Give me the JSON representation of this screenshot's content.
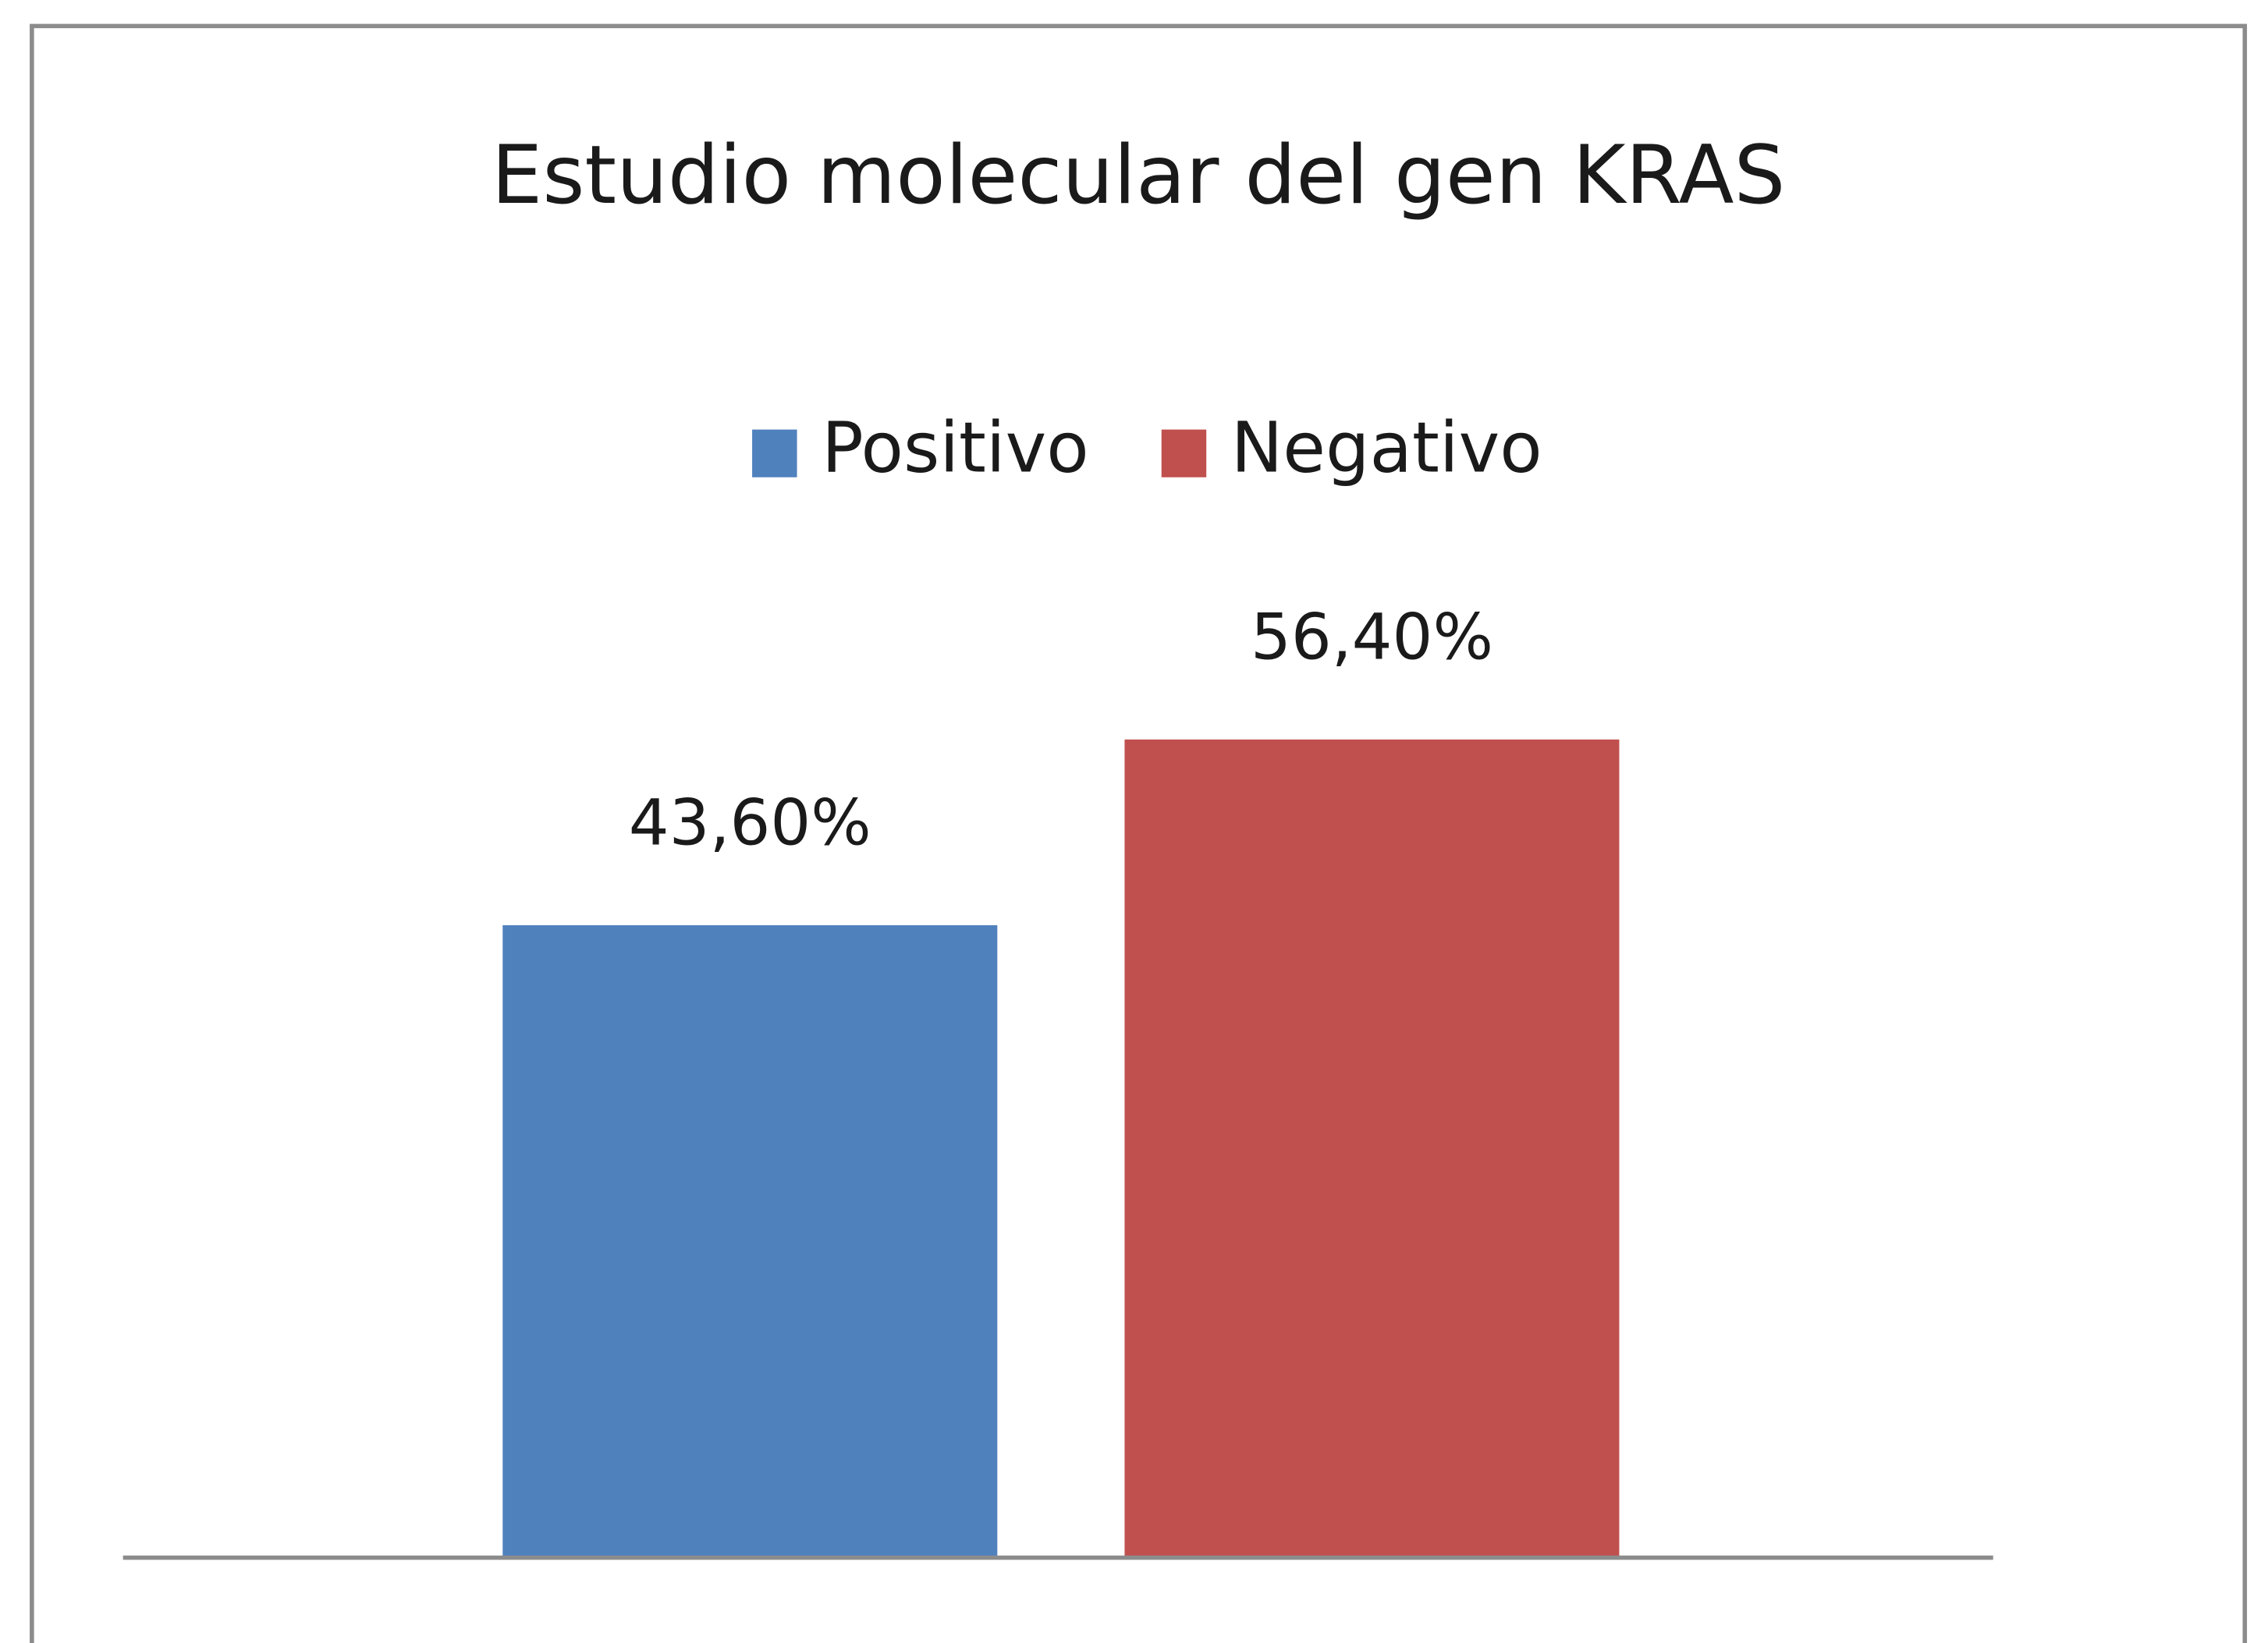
{
  "chart_data": {
    "type": "bar",
    "title": "Estudio molecular del gen KRAS",
    "categories": [
      null
    ],
    "series": [
      {
        "name": "Positivo",
        "color": "#4f81bd",
        "values": [
          43.6
        ],
        "value_labels": [
          "43,60%"
        ]
      },
      {
        "name": "Negativo",
        "color": "#c0504d",
        "values": [
          56.4
        ],
        "value_labels": [
          "56,40%"
        ]
      }
    ],
    "ylim": [
      0,
      60
    ],
    "legend": "top"
  }
}
